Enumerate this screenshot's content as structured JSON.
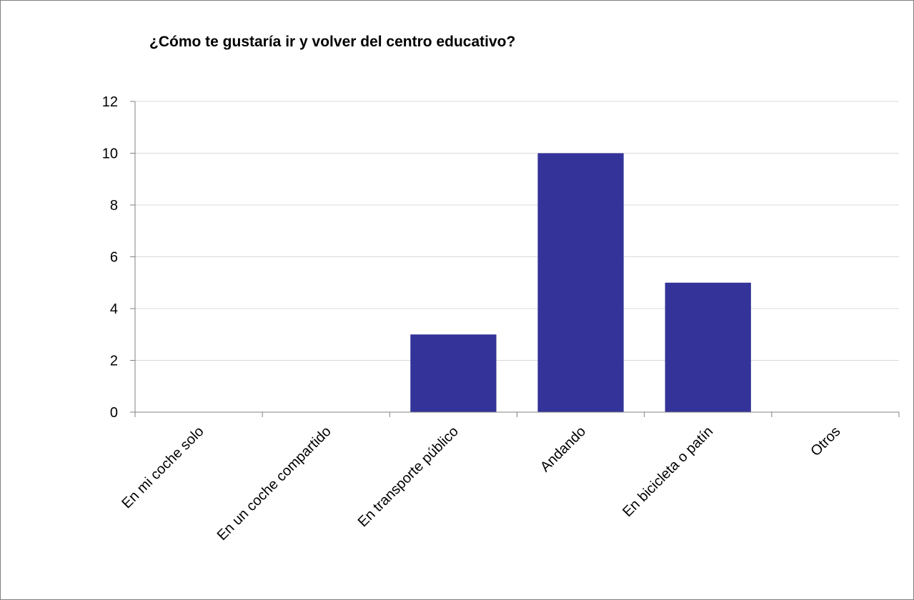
{
  "chart_data": {
    "type": "bar",
    "title": "¿Cómo te gustaría ir y volver del centro educativo?",
    "xlabel": "",
    "ylabel": "",
    "categories": [
      "En mi coche solo",
      "En un coche compartido",
      "En transporte público",
      "Andando",
      "En bicicleta o patín",
      "Otros"
    ],
    "values": [
      0,
      0,
      3,
      10,
      5,
      0
    ],
    "ylim": [
      0,
      12
    ],
    "yticks": [
      "0",
      "2",
      "4",
      "6",
      "8",
      "10",
      "12"
    ],
    "grid": true,
    "legend": "none",
    "bar_color": "#333399",
    "grid_color": "#d9d9d9",
    "axis_color": "#808080"
  }
}
